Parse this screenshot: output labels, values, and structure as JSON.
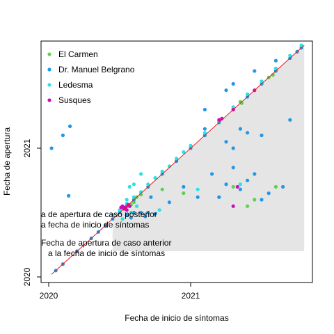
{
  "chart_data": {
    "type": "scatter",
    "xlabel": "Fecha de inicio de síntomas",
    "ylabel": "Fecha de apertura",
    "xlim": [
      2020.0,
      2021.85
    ],
    "ylim": [
      2020.0,
      2021.85
    ],
    "x_ticks": [
      {
        "value": 2020.0,
        "label": "2020"
      },
      {
        "value": 2021.0,
        "label": "2021"
      }
    ],
    "y_ticks": [
      {
        "value": 2020.0,
        "label": "2020"
      },
      {
        "value": 2021.0,
        "label": "2021"
      }
    ],
    "legend_position": "top-left",
    "grid": false,
    "colors": {
      "shaded_region": "#e5e5e5",
      "identity_line": "#e41a1c"
    },
    "annotations": [
      {
        "text_lines": [
          "a de apertura de caso posterior",
          "a fecha de inicio de síntomas"
        ]
      },
      {
        "text_lines": [
          "Fecha de apertura de caso anterior",
          "a la fecha de inicio de síntomas"
        ]
      }
    ],
    "identity_line": {
      "x": [
        2020.02,
        2021.8
      ],
      "y": [
        2020.02,
        2021.8
      ]
    },
    "shaded_region": {
      "x": [
        2020.45,
        2020.45,
        2021.8,
        2021.8
      ],
      "y": [
        2020.2,
        2020.45,
        2021.8,
        2020.2
      ]
    },
    "series": [
      {
        "name": "El Carmen",
        "color": "#61d04f",
        "points": [
          [
            2021.35,
            2021.36
          ],
          [
            2021.55,
            2021.55
          ],
          [
            2021.36,
            2021.35
          ],
          [
            2020.6,
            2020.58
          ],
          [
            2021.4,
            2020.55
          ],
          [
            2021.6,
            2020.7
          ],
          [
            2021.45,
            2020.6
          ],
          [
            2021.75,
            2021.75
          ],
          [
            2020.5,
            2020.52
          ],
          [
            2020.65,
            2020.64
          ],
          [
            2020.9,
            2020.9
          ],
          [
            2021.0,
            2021.02
          ],
          [
            2020.8,
            2020.68
          ],
          [
            2020.95,
            2020.65
          ],
          [
            2020.58,
            2020.56
          ],
          [
            2020.62,
            2020.62
          ],
          [
            2021.5,
            2021.5
          ],
          [
            2021.58,
            2021.57
          ],
          [
            2021.2,
            2020.62
          ],
          [
            2021.3,
            2020.7
          ]
        ]
      },
      {
        "name": "Dr. Manuel Belgrano",
        "color": "#2297e6",
        "points": [
          [
            2020.02,
            2021.0
          ],
          [
            2020.1,
            2021.1
          ],
          [
            2020.15,
            2021.17
          ],
          [
            2020.14,
            2020.63
          ],
          [
            2020.05,
            2020.05
          ],
          [
            2020.1,
            2020.1
          ],
          [
            2020.2,
            2020.2
          ],
          [
            2020.3,
            2020.3
          ],
          [
            2020.35,
            2020.35
          ],
          [
            2020.4,
            2020.4
          ],
          [
            2020.45,
            2020.45
          ],
          [
            2020.5,
            2020.5
          ],
          [
            2020.55,
            2020.55
          ],
          [
            2020.6,
            2020.6
          ],
          [
            2020.7,
            2020.7
          ],
          [
            2020.8,
            2020.8
          ],
          [
            2020.9,
            2020.9
          ],
          [
            2021.0,
            2021.0
          ],
          [
            2021.1,
            2021.1
          ],
          [
            2021.2,
            2021.2
          ],
          [
            2021.3,
            2021.3
          ],
          [
            2021.4,
            2021.4
          ],
          [
            2021.5,
            2021.5
          ],
          [
            2021.6,
            2021.6
          ],
          [
            2021.7,
            2021.7
          ],
          [
            2021.75,
            2021.75
          ],
          [
            2021.78,
            2021.78
          ],
          [
            2020.55,
            2020.48
          ],
          [
            2020.6,
            2020.5
          ],
          [
            2020.65,
            2020.5
          ],
          [
            2020.7,
            2020.5
          ],
          [
            2020.75,
            2020.49
          ],
          [
            2020.58,
            2020.46
          ],
          [
            2020.68,
            2020.47
          ],
          [
            2021.3,
            2021.5
          ],
          [
            2021.25,
            2021.45
          ],
          [
            2021.45,
            2021.6
          ],
          [
            2021.6,
            2021.68
          ],
          [
            2021.1,
            2021.15
          ],
          [
            2021.25,
            2020.72
          ],
          [
            2021.35,
            2020.68
          ],
          [
            2021.15,
            2020.8
          ],
          [
            2021.3,
            2020.85
          ],
          [
            2021.2,
            2020.62
          ],
          [
            2021.4,
            2020.75
          ],
          [
            2021.55,
            2020.65
          ],
          [
            2021.25,
            2021.05
          ],
          [
            2021.3,
            2021.0
          ],
          [
            2021.5,
            2021.1
          ],
          [
            2021.7,
            2021.22
          ],
          [
            2021.1,
            2021.3
          ],
          [
            2020.95,
            2020.7
          ],
          [
            2021.05,
            2020.62
          ],
          [
            2021.45,
            2020.8
          ],
          [
            2021.5,
            2020.6
          ],
          [
            2020.85,
            2020.58
          ],
          [
            2020.72,
            2020.62
          ],
          [
            2021.35,
            2021.15
          ],
          [
            2021.4,
            2021.12
          ],
          [
            2021.65,
            2020.7
          ]
        ]
      },
      {
        "name": "Ledesma",
        "color": "#28e2e5",
        "points": [
          [
            2020.45,
            2020.48
          ],
          [
            2020.5,
            2020.52
          ],
          [
            2020.55,
            2020.57
          ],
          [
            2020.6,
            2020.62
          ],
          [
            2020.65,
            2020.66
          ],
          [
            2020.7,
            2020.72
          ],
          [
            2020.75,
            2020.77
          ],
          [
            2020.8,
            2020.82
          ],
          [
            2020.85,
            2020.86
          ],
          [
            2020.9,
            2020.92
          ],
          [
            2020.95,
            2020.97
          ],
          [
            2021.0,
            2021.02
          ],
          [
            2021.1,
            2021.12
          ],
          [
            2021.2,
            2021.21
          ],
          [
            2021.3,
            2021.32
          ],
          [
            2021.4,
            2021.42
          ],
          [
            2021.5,
            2021.52
          ],
          [
            2021.6,
            2021.62
          ],
          [
            2021.7,
            2021.72
          ],
          [
            2021.78,
            2021.8
          ],
          [
            2020.55,
            2020.6
          ],
          [
            2020.62,
            2020.55
          ],
          [
            2020.6,
            2020.72
          ],
          [
            2020.57,
            2020.7
          ],
          [
            2020.65,
            2020.8
          ],
          [
            2020.78,
            2020.52
          ],
          [
            2021.05,
            2020.68
          ],
          [
            2021.35,
            2020.72
          ],
          [
            2020.52,
            2020.45
          ],
          [
            2020.58,
            2020.5
          ]
        ]
      },
      {
        "name": "Susques",
        "color": "#cd0bbc",
        "points": [
          [
            2020.52,
            2020.55
          ],
          [
            2020.54,
            2020.54
          ],
          [
            2020.55,
            2020.52
          ],
          [
            2020.53,
            2020.53
          ],
          [
            2020.56,
            2020.56
          ],
          [
            2020.51,
            2020.54
          ],
          [
            2020.57,
            2020.55
          ],
          [
            2021.2,
            2021.22
          ],
          [
            2021.3,
            2021.3
          ],
          [
            2021.45,
            2021.45
          ],
          [
            2021.33,
            2020.7
          ],
          [
            2021.3,
            2020.55
          ],
          [
            2021.22,
            2021.23
          ]
        ]
      }
    ]
  }
}
